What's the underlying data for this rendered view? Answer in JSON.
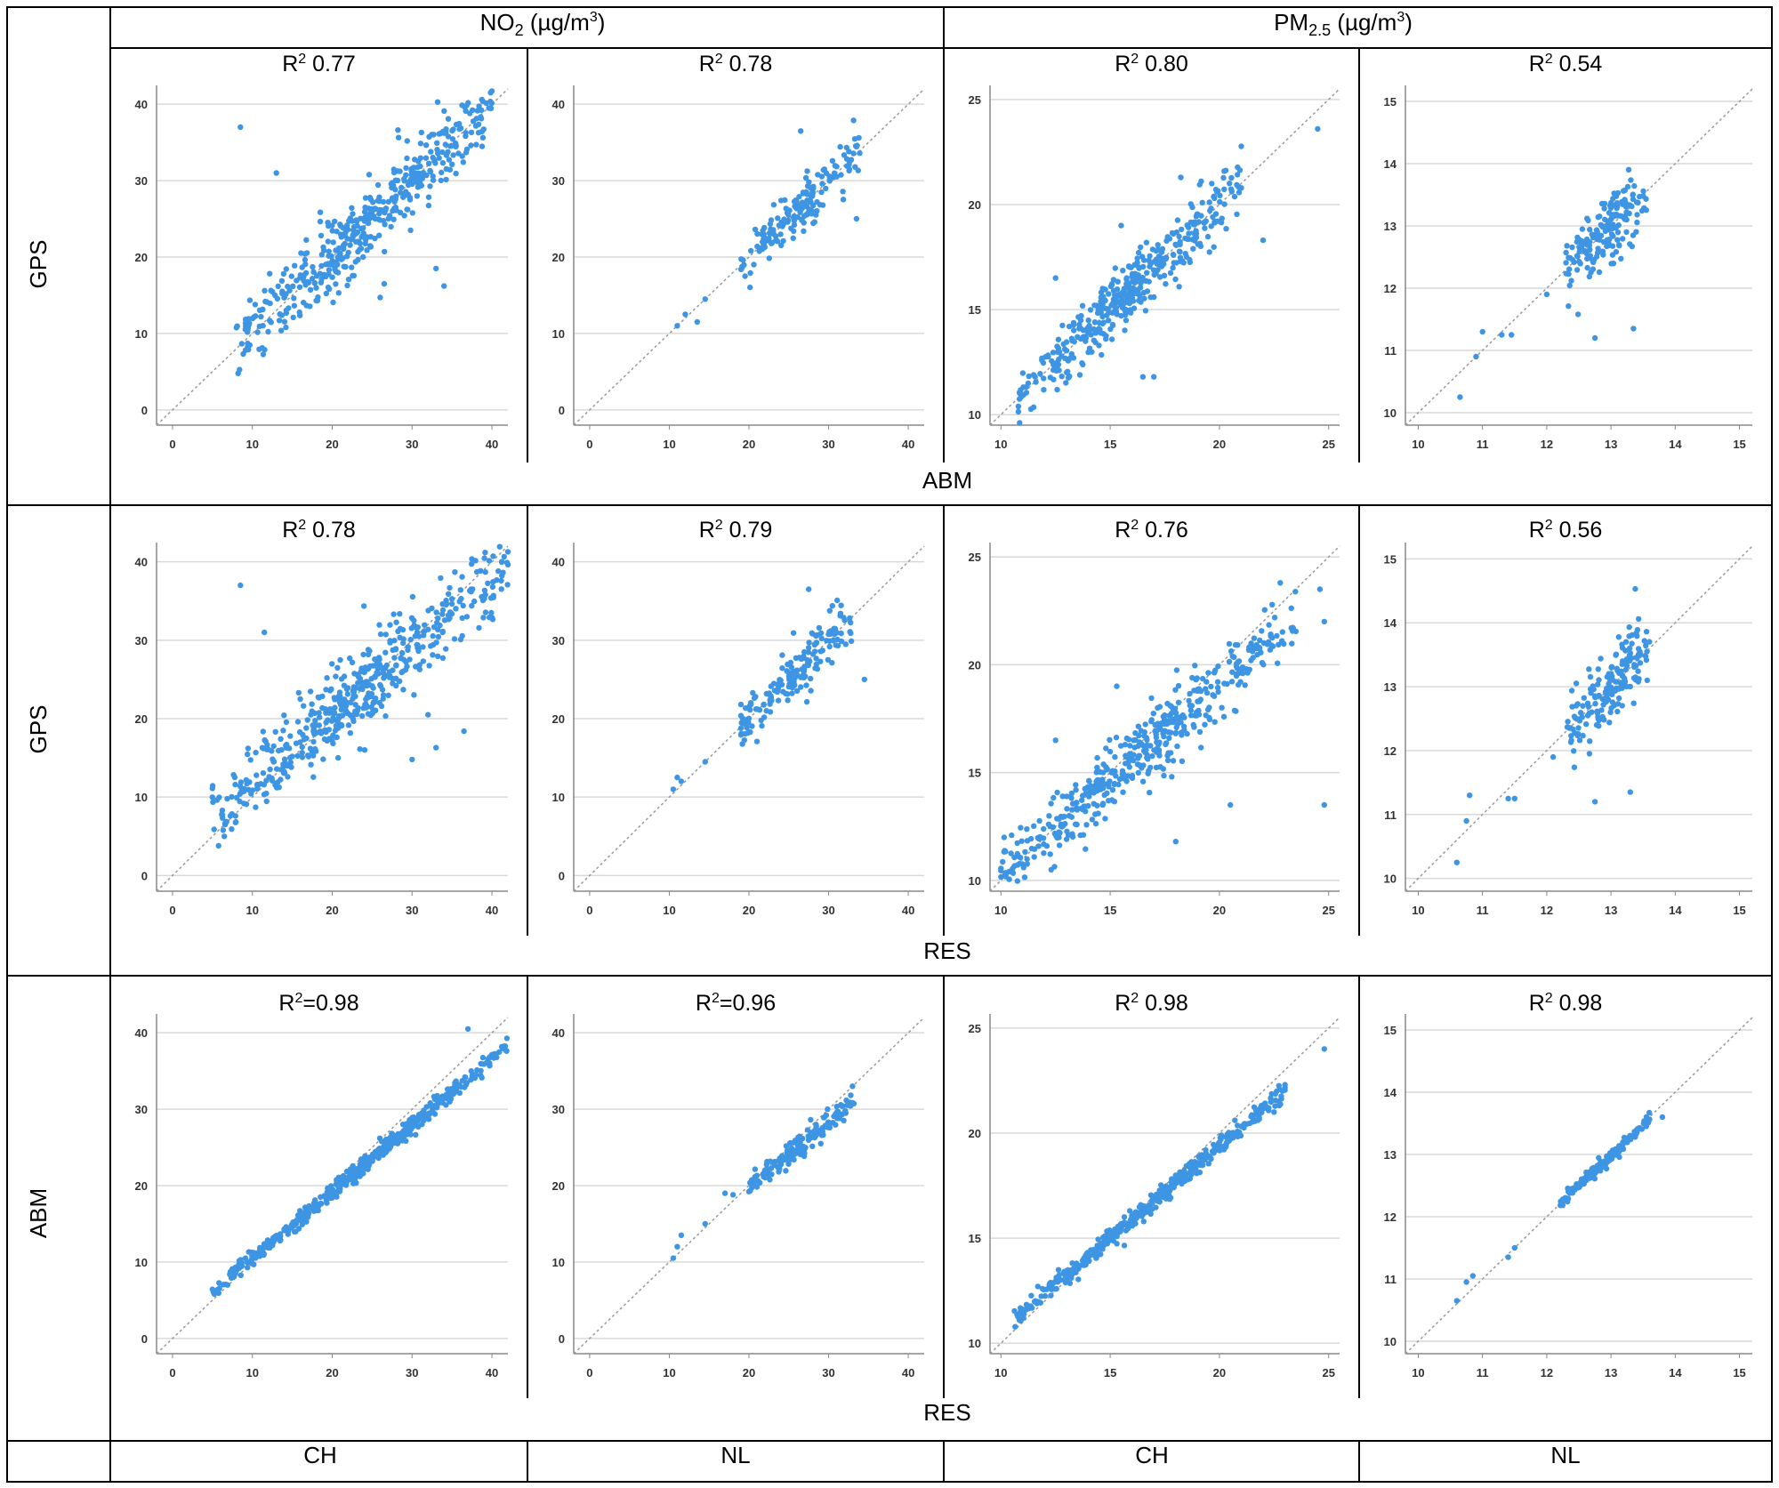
{
  "header": {
    "no2": {
      "main": "NO",
      "sub": "2",
      "unit_open": " (µg/m",
      "unit_sup": "3",
      "unit_close": ")"
    },
    "pm25": {
      "main": "PM",
      "sub": "2.5",
      "unit_open": " (µg/m",
      "unit_sup": "3",
      "unit_close": ")"
    }
  },
  "row_labels": [
    "GPS",
    "GPS",
    "ABM"
  ],
  "x_labels": [
    "ABM",
    "RES",
    "RES"
  ],
  "footer": [
    "CH",
    "NL",
    "CH",
    "NL"
  ],
  "colors": {
    "points": "#3d95e3",
    "grid": "#d9d9d9",
    "axis": "#888888",
    "diagonal": "#9a9a9a",
    "border": "#000000"
  },
  "chart_data": [
    {
      "type": "scatter",
      "row": 0,
      "col": 0,
      "pollutant": "NO2",
      "country": "CH",
      "title": "R² 0.77",
      "r2_prefix": "R",
      "r2_sup": "2",
      "r2_value": " 0.77",
      "xlabel": "ABM",
      "ylabel": "GPS",
      "xlim": [
        -2,
        42
      ],
      "ylim": [
        -2,
        42
      ],
      "ticks": [
        0,
        10,
        20,
        30,
        40
      ],
      "n": 460,
      "slope": 0.98,
      "intercept": 0.6,
      "noise": 2.4,
      "xmin": 8,
      "xmax": 40,
      "seed": 11,
      "outliers": [
        [
          8.5,
          37
        ],
        [
          13,
          31
        ],
        [
          33,
          18.5
        ],
        [
          34,
          16.2
        ],
        [
          26,
          14.7
        ],
        [
          26.5,
          16.5
        ]
      ]
    },
    {
      "type": "scatter",
      "row": 0,
      "col": 1,
      "pollutant": "NO2",
      "country": "NL",
      "title": "R² 0.78",
      "r2_prefix": "R",
      "r2_sup": "2",
      "r2_value": " 0.78",
      "xlabel": "ABM",
      "ylabel": "GPS",
      "xlim": [
        -2,
        42
      ],
      "ylim": [
        -2,
        42
      ],
      "ticks": [
        0,
        10,
        20,
        30,
        40
      ],
      "n": 170,
      "slope": 1.0,
      "intercept": 0.0,
      "noise": 1.6,
      "xmin": 19,
      "xmax": 34,
      "seed": 12,
      "outliers": [
        [
          11,
          11
        ],
        [
          12,
          12.5
        ],
        [
          13.5,
          11.5
        ],
        [
          14.5,
          14.5
        ],
        [
          33.5,
          25
        ],
        [
          26.5,
          36.5
        ]
      ]
    },
    {
      "type": "scatter",
      "row": 0,
      "col": 2,
      "pollutant": "PM2.5",
      "country": "CH",
      "title": "R² 0.80",
      "r2_prefix": "R",
      "r2_sup": "2",
      "r2_value": " 0.80",
      "xlabel": "ABM",
      "ylabel": "GPS",
      "xlim": [
        9.5,
        25.5
      ],
      "ylim": [
        9.5,
        25.5
      ],
      "ticks": [
        10,
        15,
        20,
        25
      ],
      "n": 420,
      "slope": 1.0,
      "intercept": 0.0,
      "noise": 0.75,
      "xmin": 10.8,
      "xmax": 21,
      "seed": 13,
      "outliers": [
        [
          24.5,
          23.6
        ],
        [
          22,
          18.3
        ],
        [
          16.5,
          11.8
        ],
        [
          17,
          11.8
        ],
        [
          15.5,
          19
        ],
        [
          12.5,
          16.5
        ]
      ]
    },
    {
      "type": "scatter",
      "row": 0,
      "col": 3,
      "pollutant": "PM2.5",
      "country": "NL",
      "title": "R² 0.54",
      "r2_prefix": "R",
      "r2_sup": "2",
      "r2_value": " 0.54",
      "xlabel": "ABM",
      "ylabel": "GPS",
      "xlim": [
        9.8,
        15.2
      ],
      "ylim": [
        9.8,
        15.2
      ],
      "ticks": [
        10,
        11,
        12,
        13,
        14,
        15
      ],
      "n": 170,
      "slope": 1.0,
      "intercept": 0.0,
      "noise": 0.28,
      "xmin": 12.3,
      "xmax": 13.6,
      "seed": 14,
      "outliers": [
        [
          10.65,
          10.25
        ],
        [
          10.9,
          10.9
        ],
        [
          11.0,
          11.3
        ],
        [
          11.3,
          11.25
        ],
        [
          11.45,
          11.25
        ],
        [
          12.75,
          11.2
        ],
        [
          13.35,
          11.35
        ],
        [
          12.0,
          11.9
        ]
      ]
    },
    {
      "type": "scatter",
      "row": 1,
      "col": 0,
      "pollutant": "NO2",
      "country": "CH",
      "title": "R² 0.78",
      "r2_prefix": "R",
      "r2_sup": "2",
      "r2_value": " 0.78",
      "xlabel": "RES",
      "ylabel": "GPS",
      "xlim": [
        -2,
        42
      ],
      "ylim": [
        -2,
        42
      ],
      "ticks": [
        0,
        10,
        20,
        30,
        40
      ],
      "n": 520,
      "slope": 0.86,
      "intercept": 3.3,
      "noise": 2.5,
      "xmin": 5,
      "xmax": 42,
      "seed": 21,
      "outliers": [
        [
          8.5,
          37
        ],
        [
          11.5,
          31
        ],
        [
          30,
          14.8
        ],
        [
          32,
          20.5
        ],
        [
          33,
          16.3
        ],
        [
          36.5,
          18.4
        ],
        [
          16,
          22.5
        ]
      ]
    },
    {
      "type": "scatter",
      "row": 1,
      "col": 1,
      "pollutant": "NO2",
      "country": "NL",
      "title": "R² 0.79",
      "r2_prefix": "R",
      "r2_sup": "2",
      "r2_value": " 0.79",
      "xlabel": "RES",
      "ylabel": "GPS",
      "xlim": [
        -2,
        42
      ],
      "ylim": [
        -2,
        42
      ],
      "ticks": [
        0,
        10,
        20,
        30,
        40
      ],
      "n": 170,
      "slope": 0.96,
      "intercept": 1.0,
      "noise": 1.6,
      "xmin": 19,
      "xmax": 33,
      "seed": 22,
      "outliers": [
        [
          10.5,
          11
        ],
        [
          11,
          12.5
        ],
        [
          11.5,
          12
        ],
        [
          14.5,
          14.5
        ],
        [
          34.5,
          25
        ],
        [
          27.5,
          36.5
        ]
      ]
    },
    {
      "type": "scatter",
      "row": 1,
      "col": 2,
      "pollutant": "PM2.5",
      "country": "CH",
      "title": "R² 0.76",
      "r2_prefix": "R",
      "r2_sup": "2",
      "r2_value": " 0.76",
      "xlabel": "RES",
      "ylabel": "GPS",
      "xlim": [
        9.5,
        25.5
      ],
      "ylim": [
        9.5,
        25.5
      ],
      "ticks": [
        10,
        15,
        20,
        25
      ],
      "n": 460,
      "slope": 0.86,
      "intercept": 1.8,
      "noise": 0.8,
      "xmin": 10,
      "xmax": 23.5,
      "seed": 23,
      "outliers": [
        [
          24.6,
          23.5
        ],
        [
          24.8,
          22
        ],
        [
          24.8,
          13.5
        ],
        [
          20.5,
          13.5
        ],
        [
          18,
          11.8
        ],
        [
          15.3,
          19
        ],
        [
          12.5,
          16.5
        ],
        [
          12.3,
          10.5
        ]
      ]
    },
    {
      "type": "scatter",
      "row": 1,
      "col": 3,
      "pollutant": "PM2.5",
      "country": "NL",
      "title": "R² 0.56",
      "r2_prefix": "R",
      "r2_sup": "2",
      "r2_value": " 0.56",
      "xlabel": "RES",
      "ylabel": "GPS",
      "xlim": [
        9.8,
        15.2
      ],
      "ylim": [
        9.8,
        15.2
      ],
      "ticks": [
        10,
        11,
        12,
        13,
        14,
        15
      ],
      "n": 170,
      "slope": 1.0,
      "intercept": 0.0,
      "noise": 0.28,
      "xmin": 12.3,
      "xmax": 13.6,
      "seed": 24,
      "outliers": [
        [
          10.6,
          10.25
        ],
        [
          10.75,
          10.9
        ],
        [
          10.8,
          11.3
        ],
        [
          11.4,
          11.25
        ],
        [
          11.5,
          11.25
        ],
        [
          12.75,
          11.2
        ],
        [
          13.3,
          11.35
        ],
        [
          12.1,
          11.9
        ]
      ]
    },
    {
      "type": "scatter",
      "row": 2,
      "col": 0,
      "pollutant": "NO2",
      "country": "CH",
      "title": "R²=0.98",
      "r2_prefix": "R",
      "r2_sup": "2",
      "r2_value": "=0.98",
      "xlabel": "RES",
      "ylabel": "ABM",
      "xlim": [
        -2,
        42
      ],
      "ylim": [
        -2,
        42
      ],
      "ticks": [
        0,
        10,
        20,
        30,
        40
      ],
      "n": 520,
      "slope": 0.87,
      "intercept": 1.8,
      "noise": 0.55,
      "xmin": 5,
      "xmax": 42,
      "seed": 31,
      "outliers": [
        [
          37,
          40.5
        ]
      ]
    },
    {
      "type": "scatter",
      "row": 2,
      "col": 1,
      "pollutant": "NO2",
      "country": "NL",
      "title": "R²=0.96",
      "r2_prefix": "R",
      "r2_sup": "2",
      "r2_value": "=0.96",
      "xlabel": "RES",
      "ylabel": "ABM",
      "xlim": [
        -2,
        42
      ],
      "ylim": [
        -2,
        42
      ],
      "ticks": [
        0,
        10,
        20,
        30,
        40
      ],
      "n": 170,
      "slope": 0.88,
      "intercept": 2.0,
      "noise": 0.7,
      "xmin": 20,
      "xmax": 33.5,
      "seed": 32,
      "outliers": [
        [
          10.5,
          10.5
        ],
        [
          11,
          12
        ],
        [
          11.5,
          13.5
        ],
        [
          14.5,
          15
        ],
        [
          17,
          19
        ],
        [
          18,
          18.8
        ],
        [
          33,
          33
        ]
      ]
    },
    {
      "type": "scatter",
      "row": 2,
      "col": 2,
      "pollutant": "PM2.5",
      "country": "CH",
      "title": "R² 0.98",
      "r2_prefix": "R",
      "r2_sup": "2",
      "r2_value": " 0.98",
      "xlabel": "RES",
      "ylabel": "ABM",
      "xlim": [
        9.5,
        25.5
      ],
      "ylim": [
        9.5,
        25.5
      ],
      "ticks": [
        10,
        15,
        20,
        25
      ],
      "n": 460,
      "slope": 0.88,
      "intercept": 1.8,
      "noise": 0.22,
      "xmin": 10.6,
      "xmax": 23,
      "seed": 33,
      "outliers": [
        [
          24.8,
          24
        ],
        [
          23,
          22.3
        ],
        [
          22.5,
          21
        ]
      ]
    },
    {
      "type": "scatter",
      "row": 2,
      "col": 3,
      "pollutant": "PM2.5",
      "country": "NL",
      "title": "R² 0.98",
      "r2_prefix": "R",
      "r2_sup": "2",
      "r2_value": " 0.98",
      "xlabel": "RES",
      "ylabel": "ABM",
      "xlim": [
        9.8,
        15.2
      ],
      "ylim": [
        9.8,
        15.2
      ],
      "ticks": [
        10,
        11,
        12,
        13,
        14,
        15
      ],
      "n": 170,
      "slope": 0.96,
      "intercept": 0.5,
      "noise": 0.05,
      "xmin": 12.2,
      "xmax": 13.6,
      "seed": 34,
      "outliers": [
        [
          10.6,
          10.65
        ],
        [
          10.75,
          10.95
        ],
        [
          10.85,
          11.05
        ],
        [
          11.4,
          11.35
        ],
        [
          11.5,
          11.5
        ],
        [
          13.8,
          13.6
        ]
      ]
    }
  ]
}
